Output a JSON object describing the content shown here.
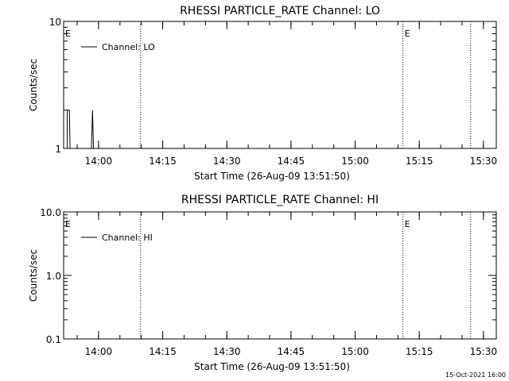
{
  "footer": {
    "timestamp": "15-Oct-2021 16:00"
  },
  "chart_data": [
    {
      "type": "line",
      "title": "RHESSI PARTICLE_RATE Channel: LO",
      "xlabel": "Start Time (26-Aug-09 13:51:50)",
      "ylabel": "Counts/sec",
      "yscale": "log",
      "ylim": [
        1,
        10
      ],
      "y_ticks": [
        {
          "value": 1,
          "label": "1"
        },
        {
          "value": 10,
          "label": "10"
        }
      ],
      "xlim": [
        "13:51:50",
        "15:33:00"
      ],
      "x_ticks": [
        "14:00",
        "14:15",
        "14:30",
        "14:45",
        "15:00",
        "15:15",
        "15:30"
      ],
      "legend": "top-left",
      "series": [
        {
          "name": "Channel: LO",
          "color": "#000000",
          "points": [
            [
              "13:52:40",
              1
            ],
            [
              "13:52:40",
              2
            ],
            [
              "13:53:10",
              2
            ],
            [
              "13:53:20",
              1
            ],
            [
              "13:58:20",
              1
            ],
            [
              "13:58:35",
              2
            ],
            [
              "13:58:50",
              1
            ]
          ]
        }
      ],
      "event_lines": [
        "14:09:50",
        "15:11:10",
        "15:27:00"
      ],
      "event_labels": [
        {
          "text": "E",
          "at": "13:51:50"
        },
        {
          "text": "E",
          "at": "15:11:10"
        }
      ]
    },
    {
      "type": "line",
      "title": "RHESSI PARTICLE_RATE Channel: HI",
      "xlabel": "Start Time (26-Aug-09 13:51:50)",
      "ylabel": "Counts/sec",
      "yscale": "log",
      "ylim": [
        0.1,
        10
      ],
      "y_ticks": [
        {
          "value": 0.1,
          "label": "0.1"
        },
        {
          "value": 1,
          "label": "1.0"
        },
        {
          "value": 10,
          "label": "10.0"
        }
      ],
      "xlim": [
        "13:51:50",
        "15:33:00"
      ],
      "x_ticks": [
        "14:00",
        "14:15",
        "14:30",
        "14:45",
        "15:00",
        "15:15",
        "15:30"
      ],
      "legend": "top-left",
      "series": [
        {
          "name": "Channel: HI",
          "color": "#000000",
          "points": []
        }
      ],
      "event_lines": [
        "14:09:50",
        "15:11:10",
        "15:27:00"
      ],
      "event_labels": [
        {
          "text": "E",
          "at": "13:51:50"
        },
        {
          "text": "E",
          "at": "15:11:10"
        }
      ]
    }
  ]
}
